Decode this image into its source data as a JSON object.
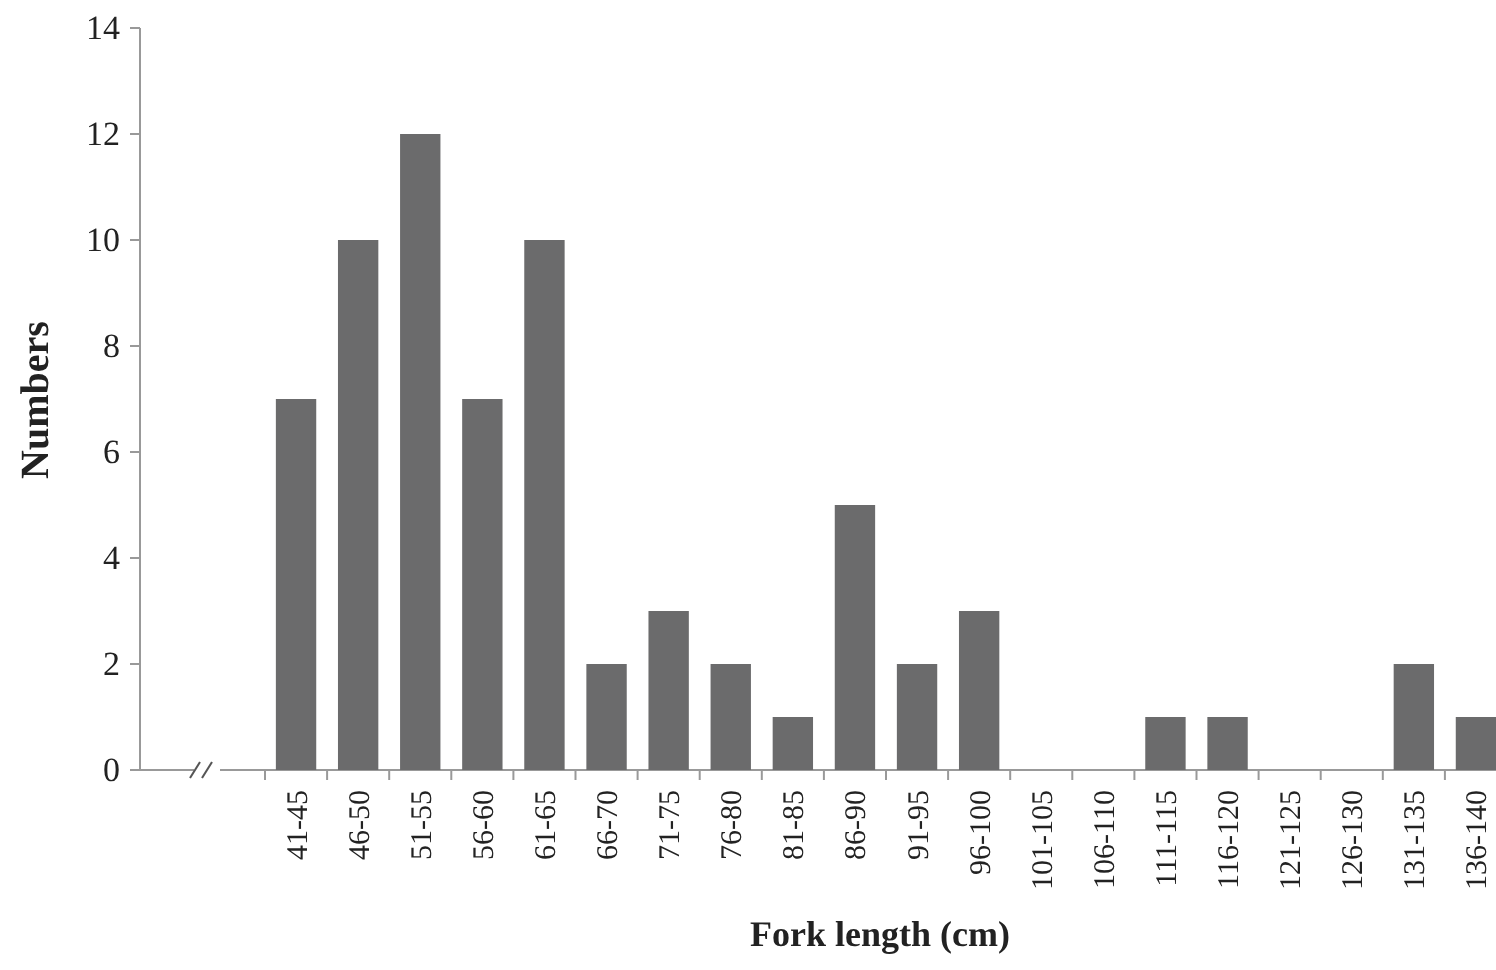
{
  "chart_data": {
    "type": "bar",
    "xlabel": "Fork length (cm)",
    "ylabel": "Numbers",
    "categories": [
      "41-45",
      "46-50",
      "51-55",
      "56-60",
      "61-65",
      "66-70",
      "71-75",
      "76-80",
      "81-85",
      "86-90",
      "91-95",
      "96-100",
      "101-105",
      "106-110",
      "111-115",
      "116-120",
      "121-125",
      "126-130",
      "131-135",
      "136-140"
    ],
    "values": [
      7,
      10,
      12,
      7,
      10,
      2,
      3,
      2,
      1,
      5,
      2,
      3,
      0,
      0,
      1,
      1,
      0,
      0,
      2,
      1
    ],
    "color": "#6b6b6c",
    "ylim": [
      0,
      14
    ],
    "yticks": [
      0,
      2,
      4,
      6,
      8,
      10,
      12,
      14
    ],
    "grid": false
  }
}
